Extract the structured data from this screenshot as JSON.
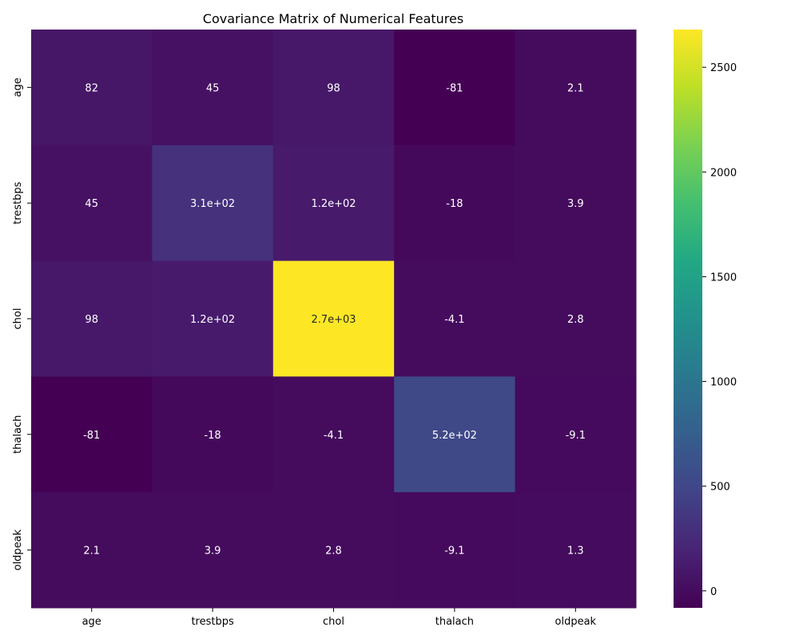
{
  "chart_data": {
    "type": "heatmap",
    "title": "Covariance Matrix of Numerical Features",
    "xlabel": "",
    "ylabel": "",
    "x_categories": [
      "age",
      "trestbps",
      "chol",
      "thalach",
      "oldpeak"
    ],
    "y_categories": [
      "age",
      "trestbps",
      "chol",
      "thalach",
      "oldpeak"
    ],
    "values": [
      [
        82,
        45,
        98,
        -81,
        2.1
      ],
      [
        45,
        310,
        120,
        -18,
        3.9
      ],
      [
        98,
        120,
        2700,
        -4.1,
        2.8
      ],
      [
        -81,
        -18,
        -4.1,
        520,
        -9.1
      ],
      [
        2.1,
        3.9,
        2.8,
        -9.1,
        1.3
      ]
    ],
    "annotations": [
      [
        "82",
        "45",
        "98",
        "-81",
        "2.1"
      ],
      [
        "45",
        "3.1e+02",
        "1.2e+02",
        "-18",
        "3.9"
      ],
      [
        "98",
        "1.2e+02",
        "2.7e+03",
        "-4.1",
        "2.8"
      ],
      [
        "-81",
        "-18",
        "-4.1",
        "5.2e+02",
        "-9.1"
      ],
      [
        "2.1",
        "3.9",
        "2.8",
        "-9.1",
        "1.3"
      ]
    ],
    "colormap": "viridis",
    "colorbar": {
      "range": [
        -81,
        2680
      ],
      "ticks": [
        0,
        500,
        1000,
        1500,
        2000,
        2500
      ]
    },
    "grid": false
  }
}
